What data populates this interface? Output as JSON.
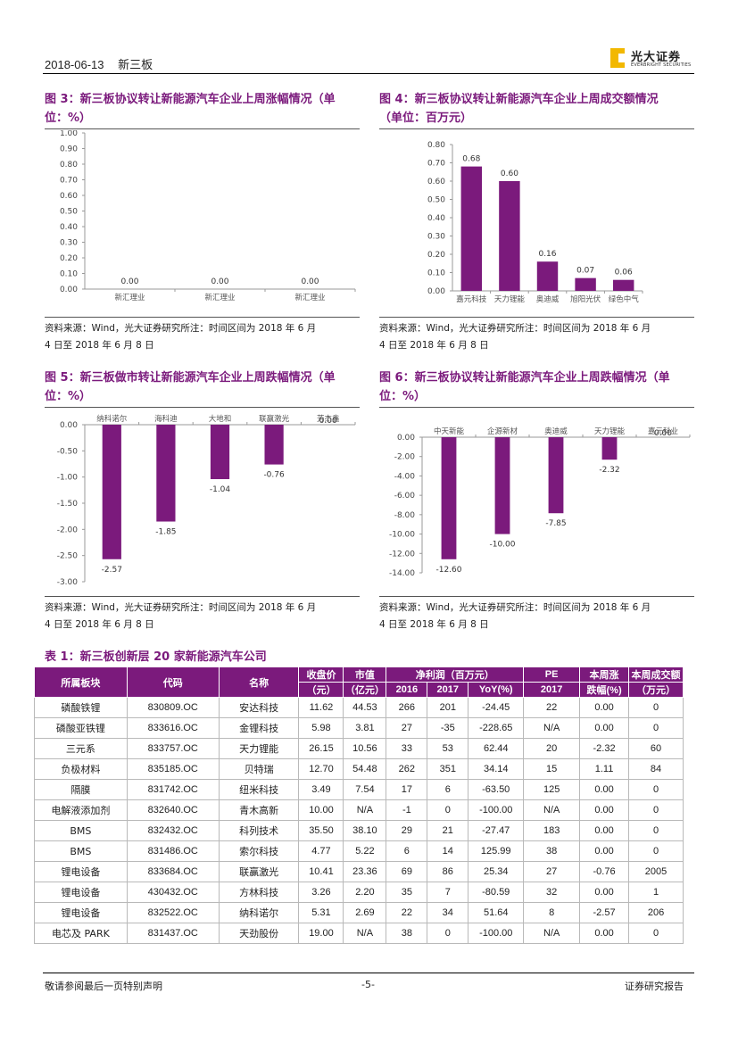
{
  "header": {
    "date": "2018-06-13",
    "section": "新三板",
    "logo_name": "光大证券",
    "logo_en": "EVERBRIGHT SECURITIES"
  },
  "figures": {
    "fig3": {
      "title": "图 3：新三板协议转让新能源汽车企业上周涨幅情况（单位：%）",
      "title_l1": "图 3：新三板协议转让新能源汽车企业上周涨幅情况（单",
      "title_l2": "位：%）",
      "source_l1": "资料来源：Wind，光大证券研究所注：时间区间为 2018 年 6 月",
      "source_l2": "4 日至 2018 年 6 月 8 日"
    },
    "fig4": {
      "title_l1": "图 4：新三板协议转让新能源汽车企业上周成交额情况",
      "title_l2": "（单位：百万元）",
      "source_l1": "资料来源：Wind，光大证券研究所注：时间区间为 2018 年 6 月",
      "source_l2": "4 日至 2018 年 6 月 8 日"
    },
    "fig5": {
      "title_l1": "图 5：新三板做市转让新能源汽车企业上周跌幅情况（单",
      "title_l2": "位：%）",
      "source_l1": "资料来源：Wind，光大证券研究所注：时间区间为 2018 年 6 月",
      "source_l2": "4 日至 2018 年 6 月 8 日"
    },
    "fig6": {
      "title_l1": "图 6：新三板协议转让新能源汽车企业上周跌幅情况（单",
      "title_l2": "位：%）",
      "source_l1": "资料来源：Wind，光大证券研究所注：时间区间为 2018 年 6 月",
      "source_l2": "4 日至 2018 年 6 月 8 日"
    }
  },
  "chart_data": [
    {
      "id": "fig3",
      "type": "bar",
      "categories": [
        "新汇理业",
        "新汇理业",
        "新汇理业"
      ],
      "values": [
        0.0,
        0.0,
        0.0
      ],
      "value_labels": [
        "0.00",
        "0.00",
        "0.00"
      ],
      "ylim": [
        0,
        1.0
      ],
      "yticks": [
        "1.00",
        "0.90",
        "0.80",
        "0.70",
        "0.60",
        "0.50",
        "0.40",
        "0.30",
        "0.20",
        "0.10",
        "0.00"
      ],
      "color": "#7b1a7c"
    },
    {
      "id": "fig4",
      "type": "bar",
      "categories": [
        "嘉元科技",
        "天力锂能",
        "奥迪威",
        "旭阳光伏",
        "绿色中气"
      ],
      "values": [
        0.68,
        0.6,
        0.16,
        0.07,
        0.06
      ],
      "value_labels": [
        "0.68",
        "0.60",
        "0.16",
        "0.07",
        "0.06"
      ],
      "ylim": [
        0,
        0.8
      ],
      "yticks": [
        "0.80",
        "0.70",
        "0.60",
        "0.50",
        "0.40",
        "0.30",
        "0.20",
        "0.10",
        "0.00"
      ],
      "color": "#7b1a7c"
    },
    {
      "id": "fig5",
      "type": "bar",
      "categories": [
        "纳科诺尔",
        "海科迪",
        "大地和",
        "联赢激光",
        "芳杰鑫"
      ],
      "values": [
        -2.57,
        -1.85,
        -1.04,
        -0.76,
        0.0
      ],
      "value_labels": [
        "-2.57",
        "-1.85",
        "-1.04",
        "-0.76",
        "0.00"
      ],
      "ylim": [
        -3.0,
        0
      ],
      "yticks": [
        "0.00",
        "-0.50",
        "-1.00",
        "-1.50",
        "-2.00",
        "-2.50",
        "-3.00"
      ],
      "color": "#7b1a7c"
    },
    {
      "id": "fig6",
      "type": "bar",
      "categories": [
        "中天新能",
        "企源新材",
        "奥迪威",
        "天力锂能",
        "嘉元科业"
      ],
      "values": [
        -12.6,
        -10.0,
        -7.85,
        -2.32,
        0.0
      ],
      "value_labels": [
        "-12.60",
        "-10.00",
        "-7.85",
        "-2.32",
        "0.00"
      ],
      "ylim": [
        -14.0,
        0
      ],
      "yticks": [
        "0.00",
        "-2.00",
        "-4.00",
        "-6.00",
        "-8.00",
        "-10.00",
        "-12.00",
        "-14.00"
      ],
      "color": "#7b1a7c"
    }
  ],
  "table1": {
    "title": "表 1：新三板创新层 20 家新能源汽车公司",
    "headers": {
      "sector": "所属板块",
      "code": "代码",
      "name": "名称",
      "price_l1": "收盘价",
      "price_l2": "（元）",
      "mcap_l1": "市值",
      "mcap_l2": "（亿元）",
      "np": "净利润（百万元）",
      "y2016": "2016",
      "y2017": "2017",
      "yoy": "YoY(%)",
      "pe": "PE",
      "pe_year": "2017",
      "chg_l1": "本周涨",
      "chg_l2": "跌幅(%)",
      "vol_l1": "本周成交额",
      "vol_l2": "（万元）"
    },
    "rows": [
      [
        "磷酸铁锂",
        "830809.OC",
        "安达科技",
        "11.62",
        "44.53",
        "266",
        "201",
        "-24.45",
        "22",
        "0.00",
        "0"
      ],
      [
        "磷酸亚铁锂",
        "833616.OC",
        "金锂科技",
        "5.98",
        "3.81",
        "27",
        "-35",
        "-228.65",
        "N/A",
        "0.00",
        "0"
      ],
      [
        "三元系",
        "833757.OC",
        "天力锂能",
        "26.15",
        "10.56",
        "33",
        "53",
        "62.44",
        "20",
        "-2.32",
        "60"
      ],
      [
        "负极材料",
        "835185.OC",
        "贝特瑞",
        "12.70",
        "54.48",
        "262",
        "351",
        "34.14",
        "15",
        "1.11",
        "84"
      ],
      [
        "隔膜",
        "831742.OC",
        "纽米科技",
        "3.49",
        "7.54",
        "17",
        "6",
        "-63.50",
        "125",
        "0.00",
        "0"
      ],
      [
        "电解液添加剂",
        "832640.OC",
        "青木高新",
        "10.00",
        "N/A",
        "-1",
        "0",
        "-100.00",
        "N/A",
        "0.00",
        "0"
      ],
      [
        "BMS",
        "832432.OC",
        "科列技术",
        "35.50",
        "38.10",
        "29",
        "21",
        "-27.47",
        "183",
        "0.00",
        "0"
      ],
      [
        "BMS",
        "831486.OC",
        "索尔科技",
        "4.77",
        "5.22",
        "6",
        "14",
        "125.99",
        "38",
        "0.00",
        "0"
      ],
      [
        "锂电设备",
        "833684.OC",
        "联赢激光",
        "10.41",
        "23.36",
        "69",
        "86",
        "25.34",
        "27",
        "-0.76",
        "2005"
      ],
      [
        "锂电设备",
        "430432.OC",
        "方林科技",
        "3.26",
        "2.20",
        "35",
        "7",
        "-80.59",
        "32",
        "0.00",
        "1"
      ],
      [
        "锂电设备",
        "832522.OC",
        "纳科诺尔",
        "5.31",
        "2.69",
        "22",
        "34",
        "51.64",
        "8",
        "-2.57",
        "206"
      ],
      [
        "电芯及 PARK",
        "831437.OC",
        "天劲股份",
        "19.00",
        "N/A",
        "38",
        "0",
        "-100.00",
        "N/A",
        "0.00",
        "0"
      ]
    ]
  },
  "footer": {
    "left": "敬请参阅最后一页特别声明",
    "center": "-5-",
    "right": "证券研究报告"
  }
}
